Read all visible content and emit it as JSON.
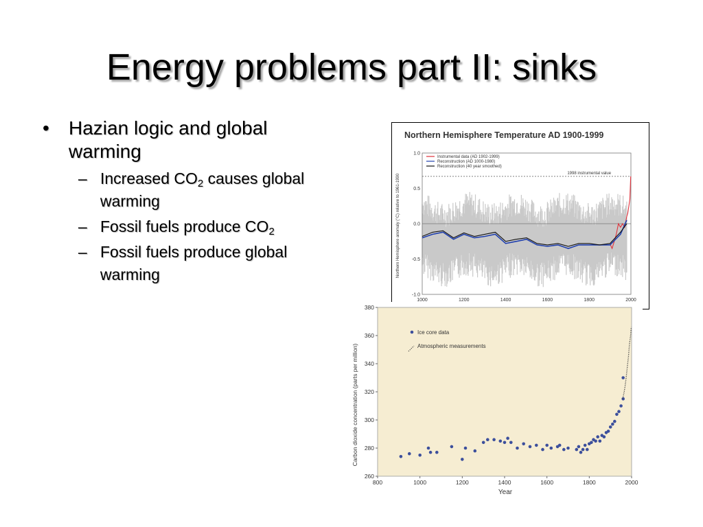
{
  "slide": {
    "title": "Energy problems part II: sinks",
    "bullet_main": "Hazian logic and global warming",
    "sub_bullets": [
      {
        "pre": "Increased CO",
        "sub": "2",
        "post": " causes global warming"
      },
      {
        "pre": "Fossil fuels produce CO",
        "sub": "2",
        "post": ""
      },
      {
        "pre": "Fossil fuels produce global warming",
        "sub": "",
        "post": ""
      }
    ],
    "bullet_glyph": "•",
    "dash_glyph": "–"
  },
  "chart_data": [
    {
      "type": "line",
      "title": "Northern Hemisphere Temperature AD 1900-1999",
      "ylabel": "Northern Hemisphere anomaly (°C) relative to 1961-1990",
      "xlim": [
        1000,
        2000
      ],
      "ylim": [
        -1.0,
        1.0
      ],
      "x_ticks": [
        "1000",
        "1200",
        "1400",
        "1600",
        "1800",
        "2000"
      ],
      "y_ticks": [
        "1.0",
        "0.5",
        "0.0",
        "-0.5",
        "-1.0"
      ],
      "reference_label": "1998 instrumental value",
      "reference_value": 0.67,
      "legend": "top-left",
      "series": [
        {
          "name": "Instrumental data (AD 1902-1999)",
          "color": "#e0303a",
          "x": [
            1902,
            1910,
            1920,
            1930,
            1940,
            1950,
            1960,
            1970,
            1980,
            1985,
            1990,
            1995,
            1999
          ],
          "y": [
            -0.3,
            -0.35,
            -0.25,
            -0.15,
            0.0,
            -0.05,
            0.0,
            -0.05,
            0.1,
            0.15,
            0.25,
            0.35,
            0.67
          ]
        },
        {
          "name": "Reconstruction (AD 1000-1980)",
          "color": "#1f3fae",
          "x": [
            1000,
            1050,
            1100,
            1150,
            1200,
            1250,
            1300,
            1350,
            1400,
            1450,
            1500,
            1550,
            1600,
            1650,
            1700,
            1750,
            1800,
            1850,
            1900,
            1950,
            1980
          ],
          "y": [
            -0.2,
            -0.15,
            -0.12,
            -0.22,
            -0.15,
            -0.2,
            -0.18,
            -0.15,
            -0.28,
            -0.25,
            -0.22,
            -0.3,
            -0.32,
            -0.3,
            -0.35,
            -0.3,
            -0.3,
            -0.3,
            -0.3,
            -0.15,
            0.05
          ]
        },
        {
          "name": "Reconstruction (40 year smoothed)",
          "color": "#111111",
          "x": [
            1000,
            1050,
            1100,
            1150,
            1200,
            1250,
            1300,
            1350,
            1400,
            1450,
            1500,
            1550,
            1600,
            1650,
            1700,
            1750,
            1800,
            1850,
            1900,
            1950,
            1980
          ],
          "y": [
            -0.18,
            -0.12,
            -0.1,
            -0.2,
            -0.13,
            -0.18,
            -0.15,
            -0.12,
            -0.25,
            -0.22,
            -0.2,
            -0.28,
            -0.3,
            -0.28,
            -0.32,
            -0.28,
            -0.28,
            -0.3,
            -0.28,
            -0.12,
            0.0
          ]
        }
      ]
    },
    {
      "type": "scatter",
      "title": "",
      "xlabel": "Year",
      "ylabel": "Carbon dioxide concentration (parts per million)",
      "xlim": [
        800,
        2000
      ],
      "ylim": [
        260,
        380
      ],
      "x_ticks": [
        "800",
        "1000",
        "1200",
        "1400",
        "1600",
        "1800",
        "2000"
      ],
      "y_ticks": [
        "260",
        "280",
        "300",
        "320",
        "340",
        "360",
        "380"
      ],
      "background": "#f6edd2",
      "legend": "top-left",
      "series": [
        {
          "name": "Ice core data",
          "color": "#3c4f9c",
          "marker": "dot",
          "x": [
            910,
            950,
            1000,
            1040,
            1050,
            1080,
            1150,
            1200,
            1215,
            1260,
            1300,
            1320,
            1350,
            1380,
            1400,
            1415,
            1430,
            1460,
            1490,
            1520,
            1550,
            1580,
            1600,
            1620,
            1650,
            1660,
            1680,
            1700,
            1740,
            1750,
            1760,
            1770,
            1780,
            1790,
            1800,
            1810,
            1820,
            1830,
            1840,
            1850,
            1860,
            1870,
            1880,
            1890,
            1900,
            1910,
            1920,
            1930,
            1940,
            1950,
            1960
          ],
          "y": [
            274,
            276,
            275,
            280,
            277,
            277,
            281,
            272,
            280,
            278,
            284,
            286,
            286,
            285,
            284,
            287,
            284,
            280,
            283,
            281,
            282,
            279,
            282,
            280,
            281,
            282,
            279,
            280,
            279,
            281,
            277,
            279,
            282,
            279,
            283,
            284,
            286,
            285,
            288,
            285,
            289,
            288,
            291,
            292,
            295,
            297,
            299,
            304,
            306,
            310,
            315
          ]
        },
        {
          "name": "Atmospheric measurements",
          "color": "#444444",
          "marker": "dotted-line",
          "x": [
            1958,
            1965,
            1970,
            1975,
            1980,
            1985,
            1990,
            1995,
            1998
          ],
          "y": [
            315,
            320,
            325,
            331,
            338,
            345,
            354,
            360,
            366
          ]
        }
      ],
      "annotation_value": {
        "x": 1960,
        "y": 330
      }
    }
  ]
}
